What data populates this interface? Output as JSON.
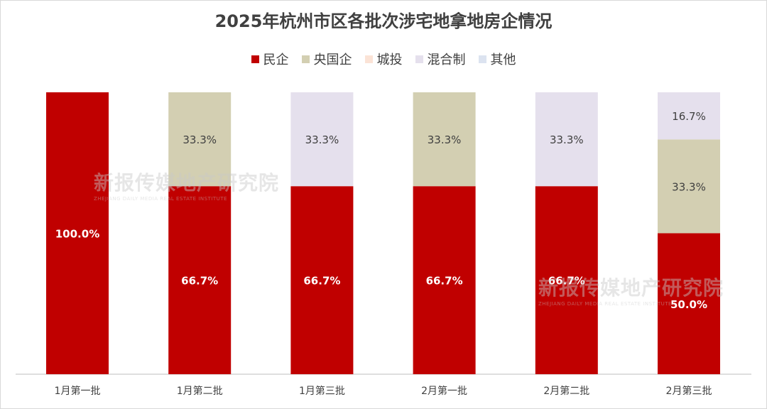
{
  "chart_data": {
    "type": "bar",
    "stacked": true,
    "percent": true,
    "title": "2025年杭州市区各批次涉宅地拿地房企情况",
    "categories": [
      "1月第一批",
      "1月第二批",
      "1月第三批",
      "2月第一批",
      "2月第二批",
      "2月第三批"
    ],
    "series": [
      {
        "name": "民企",
        "color": "#c00000",
        "values": [
          100.0,
          66.7,
          66.7,
          66.7,
          66.7,
          50.0
        ]
      },
      {
        "name": "央国企",
        "color": "#d3cfb2",
        "values": [
          0,
          33.3,
          0,
          33.3,
          0,
          33.3
        ]
      },
      {
        "name": "城投",
        "color": "#fbe3d6",
        "values": [
          0,
          0,
          0,
          0,
          0,
          0
        ]
      },
      {
        "name": "混合制",
        "color": "#e5e0ed",
        "values": [
          0,
          0,
          33.3,
          0,
          33.3,
          16.7
        ]
      },
      {
        "name": "其他",
        "color": "#dce3f0",
        "values": [
          0,
          0,
          0,
          0,
          0,
          0
        ]
      }
    ],
    "ylim": [
      0,
      100
    ],
    "legend_position": "top",
    "grid": false
  },
  "watermark": {
    "text": "新报传媒地产研究院",
    "subtext": "ZHEJIANG DAILY MEDIA REAL ESTATE INSTITUTE"
  }
}
